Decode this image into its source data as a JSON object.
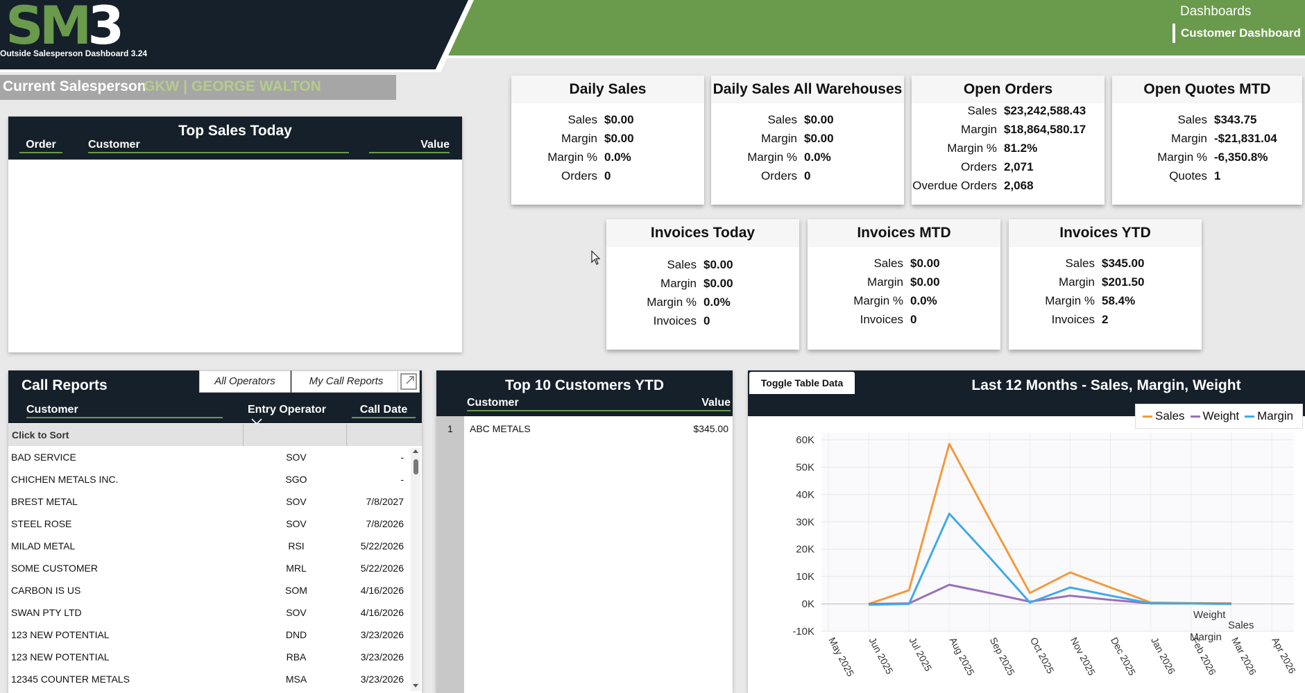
{
  "header": {
    "logo_sm": "SM",
    "logo_3": "3",
    "subtitle": "Outside Salesperson Dashboard 3.24",
    "nav_title": "Dashboards",
    "nav_item": "Customer Dashboard"
  },
  "salesperson": {
    "label": "Current Salesperson",
    "value": "GKW | GEORGE WALTON"
  },
  "top_sales_today": {
    "title": "Top Sales Today",
    "col_order": "Order",
    "col_customer": "Customer",
    "col_value": "Value"
  },
  "cards": {
    "daily_sales": {
      "title": "Daily Sales",
      "rows": [
        [
          "Sales",
          "$0.00"
        ],
        [
          "Margin",
          "$0.00"
        ],
        [
          "Margin %",
          "0.0%"
        ],
        [
          "Orders",
          "0"
        ]
      ]
    },
    "daily_all": {
      "title": "Daily Sales All Warehouses",
      "rows": [
        [
          "Sales",
          "$0.00"
        ],
        [
          "Margin",
          "$0.00"
        ],
        [
          "Margin %",
          "0.0%"
        ],
        [
          "Orders",
          "0"
        ]
      ]
    },
    "open_orders": {
      "title": "Open Orders",
      "rows": [
        [
          "Sales",
          "$23,242,588.43"
        ],
        [
          "Margin",
          "$18,864,580.17"
        ],
        [
          "Margin %",
          "81.2%"
        ],
        [
          "Orders",
          "2,071"
        ],
        [
          "Overdue Orders",
          "2,068"
        ]
      ]
    },
    "open_quotes": {
      "title": "Open Quotes MTD",
      "rows": [
        [
          "Sales",
          "$343.75"
        ],
        [
          "Margin",
          "-$21,831.04"
        ],
        [
          "Margin %",
          "-6,350.8%"
        ],
        [
          "Quotes",
          "1"
        ]
      ]
    },
    "invoices_today": {
      "title": "Invoices Today",
      "rows": [
        [
          "Sales",
          "$0.00"
        ],
        [
          "Margin",
          "$0.00"
        ],
        [
          "Margin %",
          "0.0%"
        ],
        [
          "Invoices",
          "0"
        ]
      ]
    },
    "invoices_mtd": {
      "title": "Invoices MTD",
      "rows": [
        [
          "Sales",
          "$0.00"
        ],
        [
          "Margin",
          "$0.00"
        ],
        [
          "Margin %",
          "0.0%"
        ],
        [
          "Invoices",
          "0"
        ]
      ]
    },
    "invoices_ytd": {
      "title": "Invoices YTD",
      "rows": [
        [
          "Sales",
          "$345.00"
        ],
        [
          "Margin",
          "$201.50"
        ],
        [
          "Margin %",
          "58.4%"
        ],
        [
          "Invoices",
          "2"
        ]
      ]
    }
  },
  "call_reports": {
    "title": "Call Reports",
    "btn_all": "All Operators",
    "btn_mine": "My Call Reports",
    "col_customer": "Customer",
    "col_operator": "Entry Operator",
    "col_date": "Call Date",
    "sort_label": "Click to Sort",
    "rows": [
      [
        "BAD SERVICE",
        "SOV",
        "-"
      ],
      [
        "CHICHEN METALS INC.",
        "SGO",
        "-"
      ],
      [
        "BREST METAL",
        "SOV",
        "7/8/2027"
      ],
      [
        "STEEL ROSE",
        "SOV",
        "7/8/2026"
      ],
      [
        "MILAD METAL",
        "RSI",
        "5/22/2026"
      ],
      [
        "SOME CUSTOMER",
        "MRL",
        "5/22/2026"
      ],
      [
        "CARBON IS US",
        "SOM",
        "4/16/2026"
      ],
      [
        "SWAN PTY LTD",
        "SOV",
        "4/16/2026"
      ],
      [
        "123 NEW POTENTIAL",
        "DND",
        "3/23/2026"
      ],
      [
        "123 NEW POTENTIAL",
        "RBA",
        "3/23/2026"
      ],
      [
        "12345 COUNTER METALS",
        "MSA",
        "3/23/2026"
      ]
    ]
  },
  "top10": {
    "title": "Top 10 Customers YTD",
    "col_customer": "Customer",
    "col_value": "Value",
    "rows": [
      [
        "1",
        "ABC METALS",
        "$345.00"
      ]
    ]
  },
  "chart_panel": {
    "toggle_label": "Toggle Table Data"
  },
  "chart_data": {
    "type": "line",
    "title": "Last 12 Months - Sales, Margin, Weight",
    "categories": [
      "May 2025",
      "Jun 2025",
      "Jul 2025",
      "Aug 2025",
      "Sep 2025",
      "Oct 2025",
      "Nov 2025",
      "Dec 2025",
      "Jan 2026",
      "Feb 2026",
      "Mar 2026",
      "Apr 2026"
    ],
    "y_ticks": [
      "-10K",
      "0K",
      "10K",
      "20K",
      "30K",
      "40K",
      "50K",
      "60K"
    ],
    "ylim": [
      -10000,
      60000
    ],
    "legend_position": "top-right",
    "grid": true,
    "series": [
      {
        "name": "Sales",
        "color": "#f39a3d",
        "values": [
          null,
          0,
          5000,
          58500,
          31000,
          4000,
          11500,
          6000,
          500,
          300,
          200,
          null
        ]
      },
      {
        "name": "Weight",
        "color": "#9b6fb8",
        "values": [
          null,
          0,
          200,
          7000,
          4000,
          800,
          3000,
          1500,
          200,
          150,
          100,
          null
        ]
      },
      {
        "name": "Margin",
        "color": "#3fa9e8",
        "values": [
          null,
          -300,
          0,
          33000,
          17000,
          500,
          6000,
          3000,
          200,
          150,
          0,
          null
        ]
      }
    ],
    "end_labels": [
      "Weight",
      "Sales",
      "Margin"
    ]
  }
}
